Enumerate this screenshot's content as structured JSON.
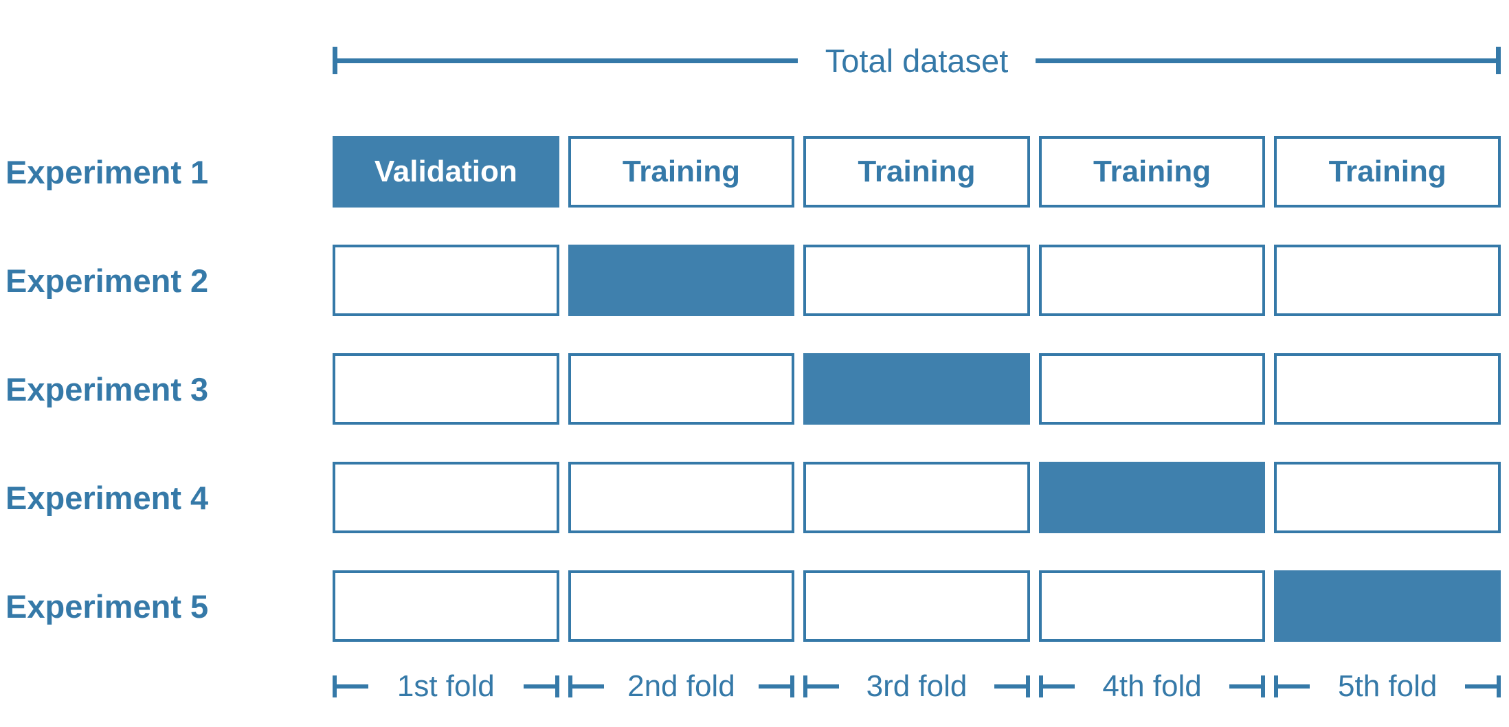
{
  "colors": {
    "accent": "#3579a8",
    "box_fill": "#3f80ad",
    "validation_text": "#ffffff",
    "background": "#ffffff"
  },
  "header": {
    "title": "Total dataset"
  },
  "experiments": [
    {
      "label": "Experiment 1",
      "cells": [
        {
          "text": "Validation",
          "filled": true
        },
        {
          "text": "Training",
          "filled": false
        },
        {
          "text": "Training",
          "filled": false
        },
        {
          "text": "Training",
          "filled": false
        },
        {
          "text": "Training",
          "filled": false
        }
      ]
    },
    {
      "label": "Experiment 2",
      "cells": [
        {
          "text": "",
          "filled": false
        },
        {
          "text": "",
          "filled": true
        },
        {
          "text": "",
          "filled": false
        },
        {
          "text": "",
          "filled": false
        },
        {
          "text": "",
          "filled": false
        }
      ]
    },
    {
      "label": "Experiment 3",
      "cells": [
        {
          "text": "",
          "filled": false
        },
        {
          "text": "",
          "filled": false
        },
        {
          "text": "",
          "filled": true
        },
        {
          "text": "",
          "filled": false
        },
        {
          "text": "",
          "filled": false
        }
      ]
    },
    {
      "label": "Experiment 4",
      "cells": [
        {
          "text": "",
          "filled": false
        },
        {
          "text": "",
          "filled": false
        },
        {
          "text": "",
          "filled": false
        },
        {
          "text": "",
          "filled": true
        },
        {
          "text": "",
          "filled": false
        }
      ]
    },
    {
      "label": "Experiment 5",
      "cells": [
        {
          "text": "",
          "filled": false
        },
        {
          "text": "",
          "filled": false
        },
        {
          "text": "",
          "filled": false
        },
        {
          "text": "",
          "filled": false
        },
        {
          "text": "",
          "filled": true
        }
      ]
    }
  ],
  "folds": [
    "1st fold",
    "2nd fold",
    "3rd fold",
    "4th fold",
    "5th fold"
  ],
  "layout_numbers": {
    "row_top_start": 198,
    "row_spacing": 158
  }
}
